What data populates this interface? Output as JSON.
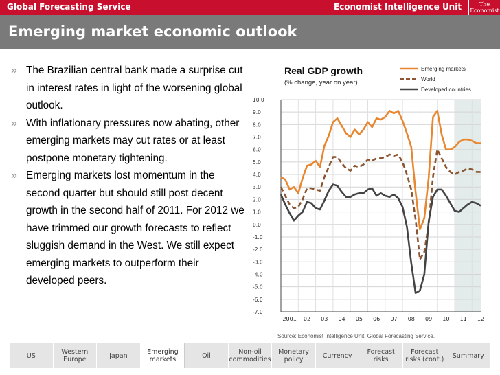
{
  "header": {
    "service": "Global Forecasting Service",
    "unit": "Economist Intelligence Unit",
    "logo_line1": "The",
    "logo_line2": "Economist"
  },
  "slide": {
    "title": "Emerging market economic outlook"
  },
  "bullets": [
    "The Brazilian central bank made a surprise cut in interest rates in light of the worsening global outlook.",
    "With inflationary pressures now abating, other emerging markets may cut rates or at least postpone monetary tightening.",
    "Emerging markets lost  momentum in the second quarter but should still post decent growth in the second half of 2011. For 2012 we have trimmed  our growth forecasts to reflect sluggish demand in the West. We still expect emerging markets to outperform their developed peers."
  ],
  "bullet_mark": "»",
  "nav": {
    "items": [
      "US",
      "Western Europe",
      "Japan",
      "Emerging markets",
      "Oil",
      "Non-oil commodities",
      "Monetary policy",
      "Currency",
      "Forecast risks",
      "Forecast risks (cont.)",
      "Summary"
    ],
    "active_index": 3
  },
  "chart_data": {
    "type": "line",
    "title": "Real GDP growth",
    "subtitle": "(% change,  year on year)",
    "source": "Source: Economist Intelligence Unit, Global Forecasting Service.",
    "ylim": [
      -7,
      10
    ],
    "yticks": [
      "10.0",
      "9.0",
      "8.0",
      "7.0",
      "6.0",
      "5.0",
      "4.0",
      "3.0",
      "2.0",
      "1.0",
      "0.0",
      "-1.0",
      "-2.0",
      "-3.0",
      "-4.0",
      "-5.0",
      "-6.0",
      "-7.0"
    ],
    "xlabels": [
      "2001",
      "02",
      "03",
      "04",
      "05",
      "06",
      "07",
      "08",
      "09",
      "10",
      "11",
      "12"
    ],
    "x_start": 2001,
    "points_per_year": 4,
    "forecast_from": 2011,
    "legend_position": "top-right",
    "series": [
      {
        "name": "Emerging markets",
        "color": "#e8872f",
        "dash": "solid",
        "values": [
          3.8,
          3.6,
          2.8,
          3.0,
          2.5,
          3.7,
          4.7,
          4.8,
          5.1,
          4.6,
          6.3,
          7.1,
          8.2,
          8.5,
          7.9,
          7.3,
          7.0,
          7.6,
          7.2,
          7.6,
          8.2,
          7.8,
          8.5,
          8.4,
          8.6,
          9.1,
          8.9,
          9.1,
          8.3,
          7.3,
          6.2,
          2.6,
          -0.4,
          0.5,
          3.7,
          8.6,
          9.1,
          7.2,
          6.0,
          6.0,
          6.2,
          6.6,
          6.8,
          6.8,
          6.7,
          6.5,
          6.5
        ]
      },
      {
        "name": "World",
        "color": "#8a5530",
        "dash": "dashed",
        "values": [
          3.0,
          2.3,
          1.6,
          1.3,
          1.4,
          2.0,
          2.9,
          2.9,
          2.8,
          2.7,
          3.8,
          4.6,
          5.4,
          5.4,
          4.9,
          4.5,
          4.3,
          4.7,
          4.6,
          4.8,
          5.2,
          5.1,
          5.3,
          5.3,
          5.4,
          5.6,
          5.5,
          5.6,
          5.0,
          4.0,
          2.8,
          0.4,
          -2.8,
          -2.2,
          0.0,
          3.8,
          6.0,
          5.3,
          4.6,
          4.2,
          4.0,
          4.2,
          4.3,
          4.5,
          4.4,
          4.2,
          4.2
        ]
      },
      {
        "name": "Developed countries",
        "color": "#444444",
        "dash": "solid",
        "values": [
          2.4,
          1.6,
          0.9,
          0.3,
          0.7,
          1.0,
          1.8,
          1.7,
          1.3,
          1.2,
          1.9,
          2.7,
          3.2,
          3.1,
          2.6,
          2.2,
          2.2,
          2.4,
          2.5,
          2.5,
          2.8,
          2.9,
          2.3,
          2.5,
          2.3,
          2.2,
          2.4,
          2.1,
          1.4,
          -0.2,
          -3.1,
          -5.5,
          -5.3,
          -4.0,
          0.2,
          2.2,
          2.8,
          2.8,
          2.3,
          1.7,
          1.1,
          1.0,
          1.3,
          1.6,
          1.8,
          1.7,
          1.5
        ]
      }
    ]
  }
}
